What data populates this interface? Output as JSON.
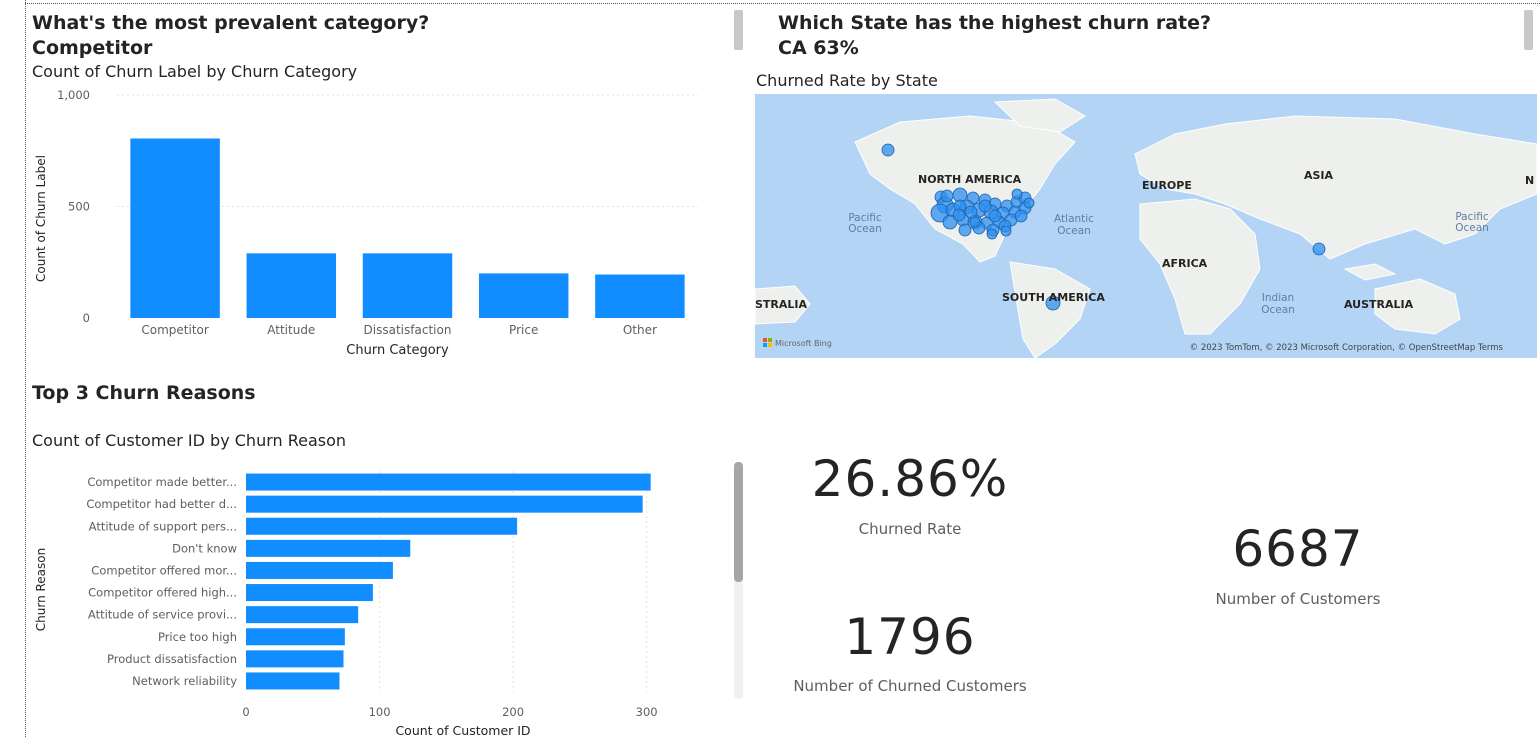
{
  "colors": {
    "bar": "#118DFF",
    "text": "#252423",
    "axis_text": "#605e5c",
    "grid": "#e1e1e1",
    "map_ocean": "#b3d4f5",
    "map_land": "#eef0ed",
    "bubble": "#2b8ff0"
  },
  "top_left": {
    "question": "What's the most prevalent category?",
    "answer": "Competitor",
    "chart_title": "Count of Churn Label by Churn Category"
  },
  "top_right": {
    "question": "Which State has the highest churn rate?",
    "answer": "CA 63%",
    "chart_title": "Churned Rate by State",
    "map_labels": {
      "north_america": "NORTH AMERICA",
      "europe": "EUROPE",
      "asia": "ASIA",
      "africa": "AFRICA",
      "south_america": "SOUTH AMERICA",
      "australia": "AUSTRALIA",
      "australia_left": "STRALIA",
      "n_edge": "N",
      "pacific_left_1": "Pacific",
      "pacific_left_2": "Ocean",
      "atlantic_1": "Atlantic",
      "atlantic_2": "Ocean",
      "indian_1": "Indian",
      "indian_2": "Ocean",
      "pacific_right_1": "Pacific",
      "pacific_right_2": "Ocean"
    },
    "attribution": "© 2023 TomTom, © 2023 Microsoft Corporation, © OpenStreetMap  Terms",
    "bing_logo": "Microsoft Bing"
  },
  "bottom_left": {
    "section_title": "Top 3 Churn Reasons",
    "chart_title": "Count of Customer ID by Churn Reason"
  },
  "kpis": {
    "churned_rate": {
      "value": "26.86%",
      "label": "Churned Rate"
    },
    "churned_customers": {
      "value": "1796",
      "label": "Number of Churned Customers"
    },
    "customers": {
      "value": "6687",
      "label": "Number of Customers"
    }
  },
  "chart_data": [
    {
      "type": "bar",
      "title": "Count of Churn Label by Churn Category",
      "xlabel": "Churn Category",
      "ylabel": "Count of Churn Label",
      "categories": [
        "Competitor",
        "Attitude",
        "Dissatisfaction",
        "Price",
        "Other"
      ],
      "values": [
        805,
        290,
        290,
        200,
        195
      ],
      "ylim": [
        0,
        1000
      ],
      "yticks": [
        "1,000",
        "500",
        "0"
      ],
      "grid": true
    },
    {
      "type": "bar",
      "orientation": "horizontal",
      "title": "Count of Customer ID by Churn Reason",
      "xlabel": "Count of Customer ID",
      "ylabel": "Churn Reason",
      "categories": [
        "Competitor made better...",
        "Competitor had better d...",
        "Attitude of support pers...",
        "Don't know",
        "Competitor offered mor...",
        "Competitor offered high...",
        "Attitude of service provi...",
        "Price too high",
        "Product dissatisfaction",
        "Network reliability"
      ],
      "values": [
        303,
        297,
        203,
        123,
        110,
        95,
        84,
        74,
        73,
        70
      ],
      "xlim": [
        0,
        310
      ],
      "xticks": [
        "0",
        "100",
        "200",
        "300"
      ],
      "grid": true
    }
  ]
}
